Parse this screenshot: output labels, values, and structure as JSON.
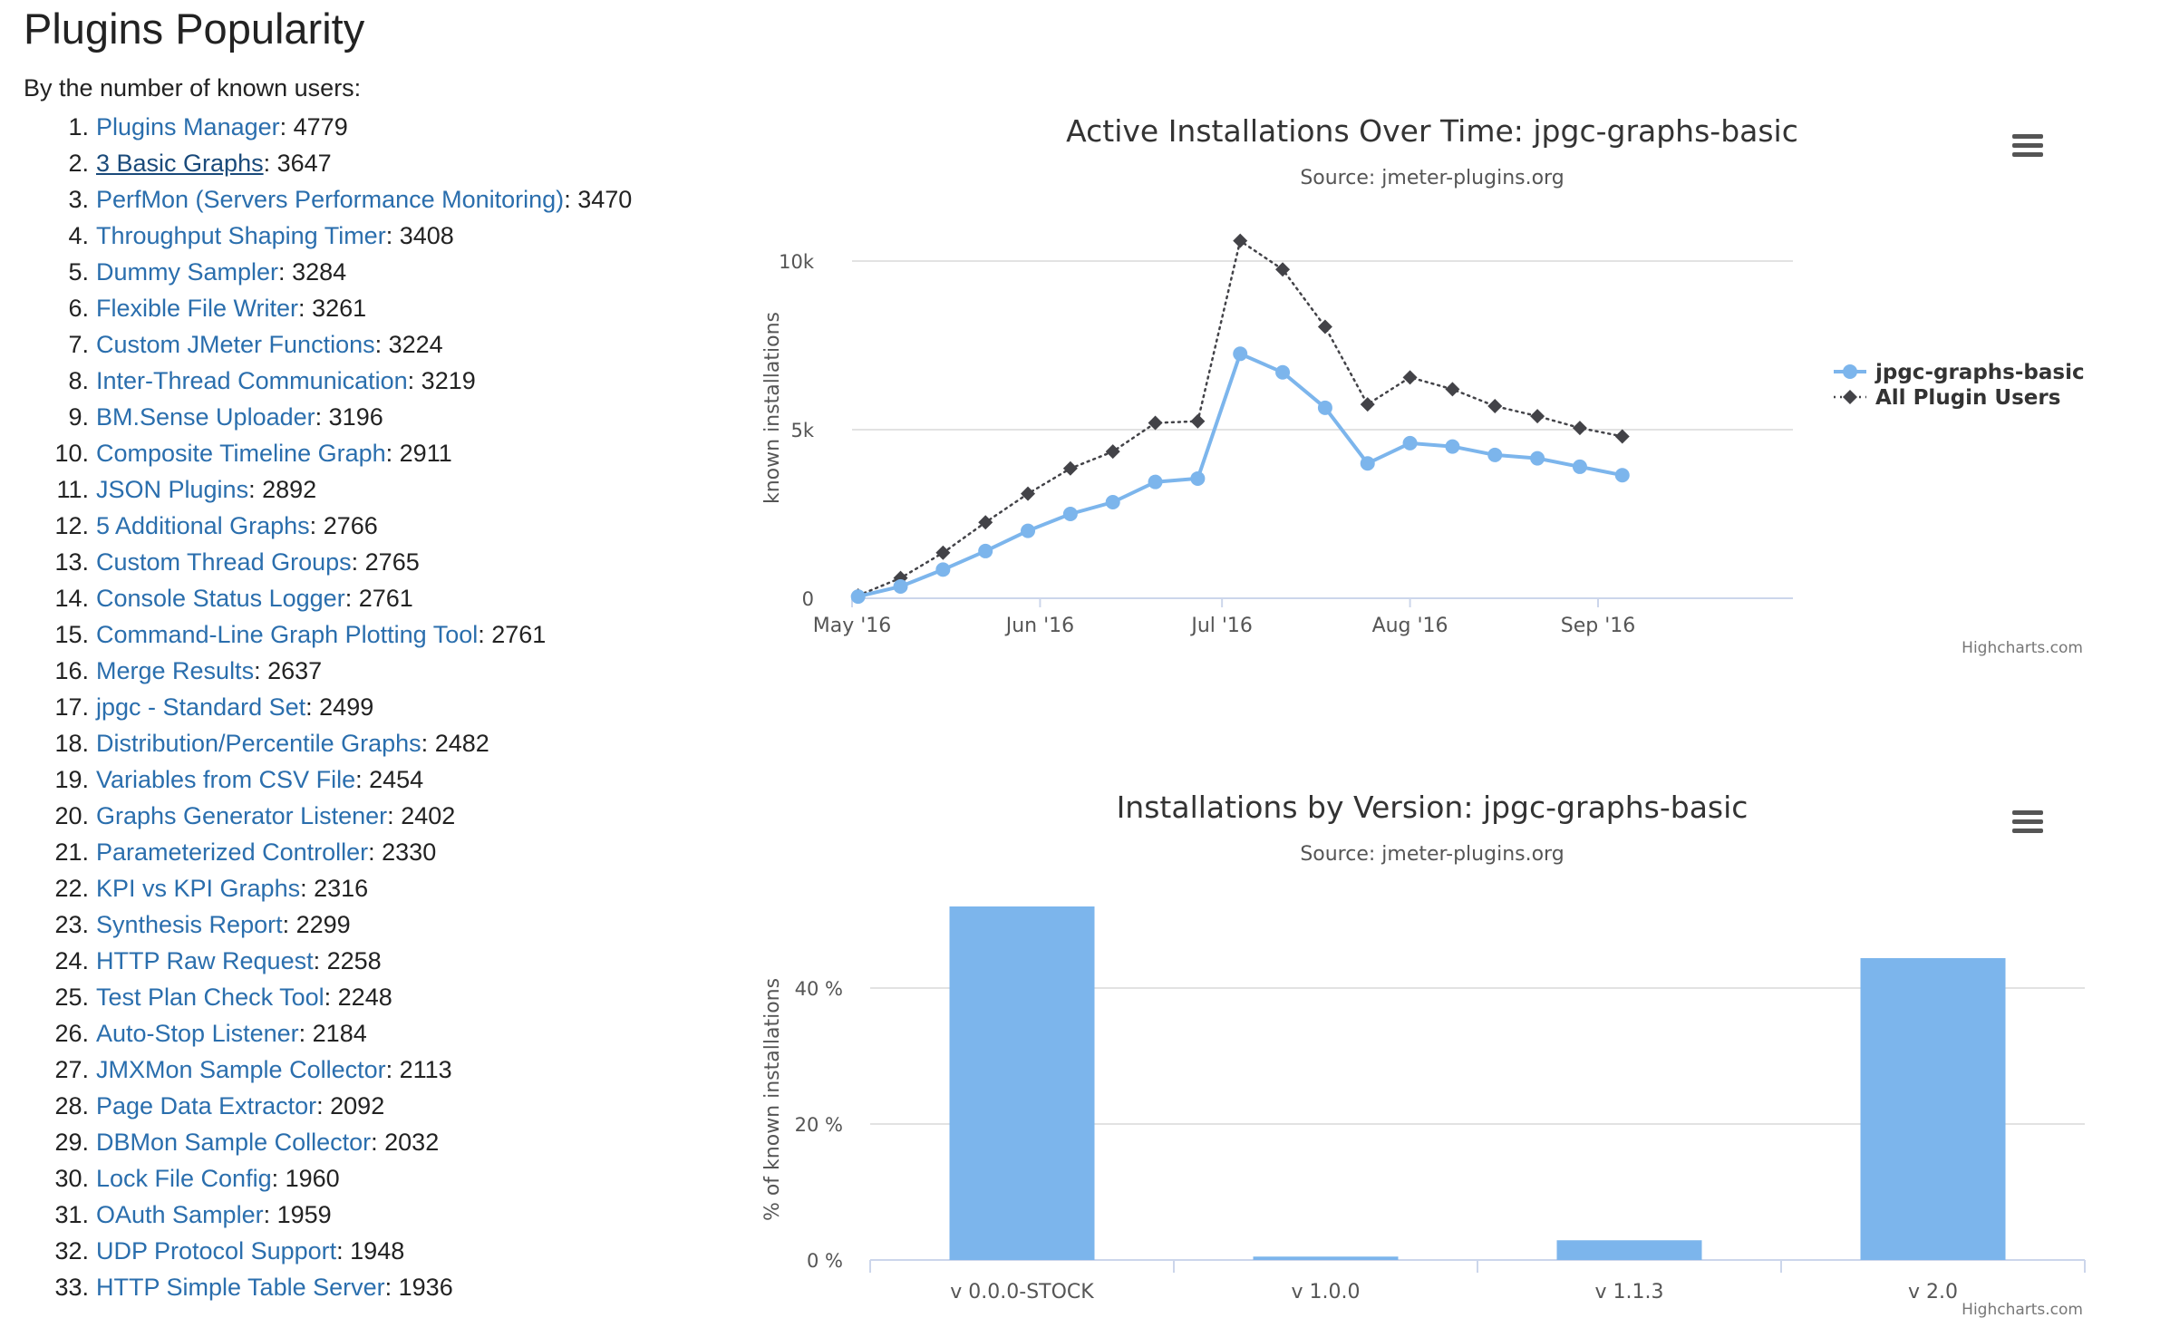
{
  "page": {
    "title": "Plugins Popularity",
    "intro": "By the number of known users:"
  },
  "plugins": [
    {
      "rank": "1.",
      "name": "Plugins Manager",
      "count": "4779"
    },
    {
      "rank": "2.",
      "name": "3 Basic Graphs",
      "count": "3647",
      "visited": true
    },
    {
      "rank": "3.",
      "name": "PerfMon (Servers Performance Monitoring)",
      "count": "3470"
    },
    {
      "rank": "4.",
      "name": "Throughput Shaping Timer",
      "count": "3408"
    },
    {
      "rank": "5.",
      "name": "Dummy Sampler",
      "count": "3284"
    },
    {
      "rank": "6.",
      "name": "Flexible File Writer",
      "count": "3261"
    },
    {
      "rank": "7.",
      "name": "Custom JMeter Functions",
      "count": "3224"
    },
    {
      "rank": "8.",
      "name": "Inter-Thread Communication",
      "count": "3219"
    },
    {
      "rank": "9.",
      "name": "BM.Sense Uploader",
      "count": "3196"
    },
    {
      "rank": "10.",
      "name": "Composite Timeline Graph",
      "count": "2911"
    },
    {
      "rank": "11.",
      "name": "JSON Plugins",
      "count": "2892"
    },
    {
      "rank": "12.",
      "name": "5 Additional Graphs",
      "count": "2766"
    },
    {
      "rank": "13.",
      "name": "Custom Thread Groups",
      "count": "2765"
    },
    {
      "rank": "14.",
      "name": "Console Status Logger",
      "count": "2761"
    },
    {
      "rank": "15.",
      "name": "Command-Line Graph Plotting Tool",
      "count": "2761"
    },
    {
      "rank": "16.",
      "name": "Merge Results",
      "count": "2637"
    },
    {
      "rank": "17.",
      "name": "jpgc - Standard Set",
      "count": "2499"
    },
    {
      "rank": "18.",
      "name": "Distribution/Percentile Graphs",
      "count": "2482"
    },
    {
      "rank": "19.",
      "name": "Variables from CSV File",
      "count": "2454"
    },
    {
      "rank": "20.",
      "name": "Graphs Generator Listener",
      "count": "2402"
    },
    {
      "rank": "21.",
      "name": "Parameterized Controller",
      "count": "2330"
    },
    {
      "rank": "22.",
      "name": "KPI vs KPI Graphs",
      "count": "2316"
    },
    {
      "rank": "23.",
      "name": "Synthesis Report",
      "count": "2299"
    },
    {
      "rank": "24.",
      "name": "HTTP Raw Request",
      "count": "2258"
    },
    {
      "rank": "25.",
      "name": "Test Plan Check Tool",
      "count": "2248"
    },
    {
      "rank": "26.",
      "name": "Auto-Stop Listener",
      "count": "2184"
    },
    {
      "rank": "27.",
      "name": "JMXMon Sample Collector",
      "count": "2113"
    },
    {
      "rank": "28.",
      "name": "Page Data Extractor",
      "count": "2092"
    },
    {
      "rank": "29.",
      "name": "DBMon Sample Collector",
      "count": "2032"
    },
    {
      "rank": "30.",
      "name": "Lock File Config",
      "count": "1960"
    },
    {
      "rank": "31.",
      "name": "OAuth Sampler",
      "count": "1959"
    },
    {
      "rank": "32.",
      "name": "UDP Protocol Support",
      "count": "1948"
    },
    {
      "rank": "33.",
      "name": "HTTP Simple Table Server",
      "count": "1936"
    }
  ],
  "icons": {
    "chart_menu": "hamburger-menu-icon"
  },
  "colors": {
    "series_primary": "#7cb5ec",
    "series_secondary": "#434348",
    "link": "#2a6ead"
  },
  "chart_data": [
    {
      "type": "line",
      "title": "Active Installations Over Time: jpgc-graphs-basic",
      "subtitle": "Source: jmeter-plugins.org",
      "ylabel": "known installations",
      "xlabel": "",
      "credit": "Highcharts.com",
      "ylim": [
        0,
        10000
      ],
      "ytick_values": [
        0,
        5000,
        10000
      ],
      "ytick_labels": [
        "0",
        "5k",
        "10k"
      ],
      "xtick_labels": [
        {
          "label": "May '16",
          "date": "2016-05-01"
        },
        {
          "label": "Jun '16",
          "date": "2016-06-01"
        },
        {
          "label": "Jul '16",
          "date": "2016-07-01"
        },
        {
          "label": "Aug '16",
          "date": "2016-08-01"
        },
        {
          "label": "Sep '16",
          "date": "2016-09-01"
        }
      ],
      "x": [
        "2016-05-02",
        "2016-05-09",
        "2016-05-16",
        "2016-05-23",
        "2016-05-30",
        "2016-06-06",
        "2016-06-13",
        "2016-06-20",
        "2016-06-27",
        "2016-07-04",
        "2016-07-11",
        "2016-07-18",
        "2016-07-25",
        "2016-08-01",
        "2016-08-08",
        "2016-08-15",
        "2016-08-22",
        "2016-08-29",
        "2016-09-05"
      ],
      "series": [
        {
          "name": "jpgc-graphs-basic",
          "color": "#7cb5ec",
          "style": "solid",
          "marker": "circle",
          "values": [
            50,
            350,
            850,
            1400,
            2000,
            2500,
            2850,
            3450,
            3550,
            7250,
            6700,
            5650,
            4000,
            4600,
            4500,
            4250,
            4150,
            3900,
            3650
          ]
        },
        {
          "name": "All Plugin Users",
          "color": "#434348",
          "style": "dotted",
          "marker": "diamond",
          "values": [
            80,
            600,
            1350,
            2250,
            3100,
            3850,
            4350,
            5200,
            5250,
            10600,
            9750,
            8050,
            5750,
            6550,
            6200,
            5700,
            5400,
            5050,
            4800
          ]
        }
      ],
      "legend": "right"
    },
    {
      "type": "bar",
      "title": "Installations by Version: jpgc-graphs-basic",
      "subtitle": "Source: jmeter-plugins.org",
      "ylabel": "% of known installations",
      "xlabel": "",
      "credit": "Highcharts.com",
      "ylim": [
        0,
        50
      ],
      "ytick_values": [
        0,
        20,
        40
      ],
      "ytick_labels": [
        "0 %",
        "20 %",
        "40 %"
      ],
      "categories": [
        "v 0.0.0-STOCK",
        "v 1.0.0",
        "v 1.1.3",
        "v 2.0"
      ],
      "values": [
        52,
        0.5,
        2.9,
        44.4
      ],
      "color": "#7cb5ec"
    }
  ]
}
